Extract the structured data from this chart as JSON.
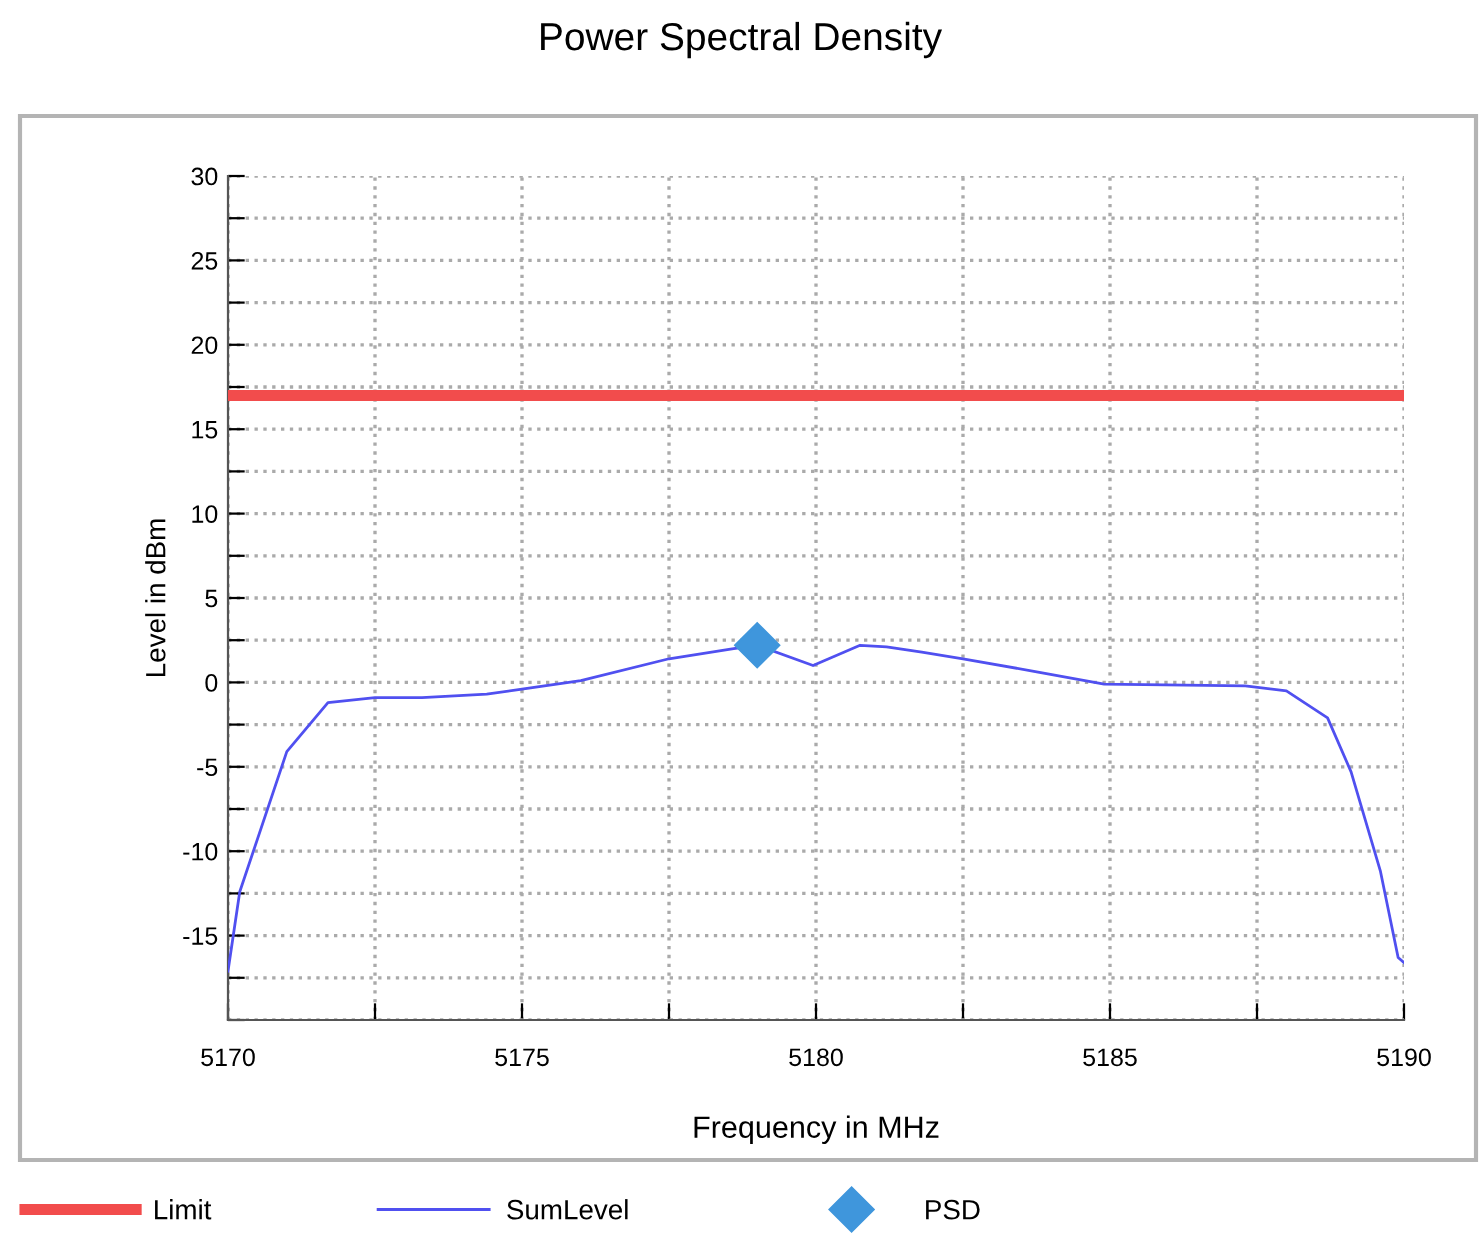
{
  "chart_data": {
    "type": "line",
    "title": "Power Spectral Density",
    "xlabel": "Frequency in MHz",
    "ylabel": "Level in dBm",
    "xlim": [
      5170,
      5190
    ],
    "ylim": [
      -20,
      30
    ],
    "xticks": [
      5170,
      {
        "value": 5172.5,
        "label": null
      },
      5175,
      {
        "value": 5177.5,
        "label": null
      },
      5180,
      {
        "value": 5182.5,
        "label": null
      },
      5185,
      {
        "value": 5187.5,
        "label": null
      },
      5190
    ],
    "yticks": [
      {
        "value": -20,
        "label": null
      },
      {
        "value": -17.5,
        "label": null
      },
      -15,
      {
        "value": -12.5,
        "label": null
      },
      -10,
      {
        "value": -7.5,
        "label": null
      },
      -5,
      {
        "value": -2.5,
        "label": null
      },
      0,
      {
        "value": 2.5,
        "label": null
      },
      5,
      {
        "value": 7.5,
        "label": null
      },
      10,
      {
        "value": 12.5,
        "label": null
      },
      15,
      {
        "value": 17.5,
        "label": null
      },
      20,
      {
        "value": 22.5,
        "label": null
      },
      25,
      {
        "value": 27.5,
        "label": null
      },
      30
    ],
    "grid": true,
    "legend": "bottom",
    "series": [
      {
        "name": "Limit",
        "color": "#f24c4c",
        "x": [
          5170,
          5190
        ],
        "values": [
          17,
          17
        ]
      },
      {
        "name": "SumLevel",
        "color": "#5050f0",
        "x": [
          5170,
          5170.2,
          5171.0,
          5171.7,
          5172.5,
          5173.3,
          5174.4,
          5175.0,
          5176.0,
          5177.5,
          5178.6,
          5179.0,
          5179.95,
          5180.75,
          5181.2,
          5181.8,
          5182.5,
          5183.8,
          5184.9,
          5187.3,
          5188.0,
          5188.7,
          5189.1,
          5189.6,
          5189.9,
          5190
        ],
        "values": [
          -17.1,
          -12.4,
          -4.1,
          -1.2,
          -0.9,
          -0.9,
          -0.7,
          -0.4,
          0.1,
          1.4,
          2.0,
          2.2,
          1.0,
          2.2,
          2.1,
          1.8,
          1.4,
          0.6,
          -0.1,
          -0.2,
          -0.5,
          -2.1,
          -5.3,
          -11.2,
          -16.3,
          -16.6
        ]
      },
      {
        "name": "PSD",
        "type": "scatter",
        "marker": "diamond",
        "color": "#3f96dc",
        "x": [
          5179.0
        ],
        "values": [
          2.2
        ]
      }
    ]
  }
}
